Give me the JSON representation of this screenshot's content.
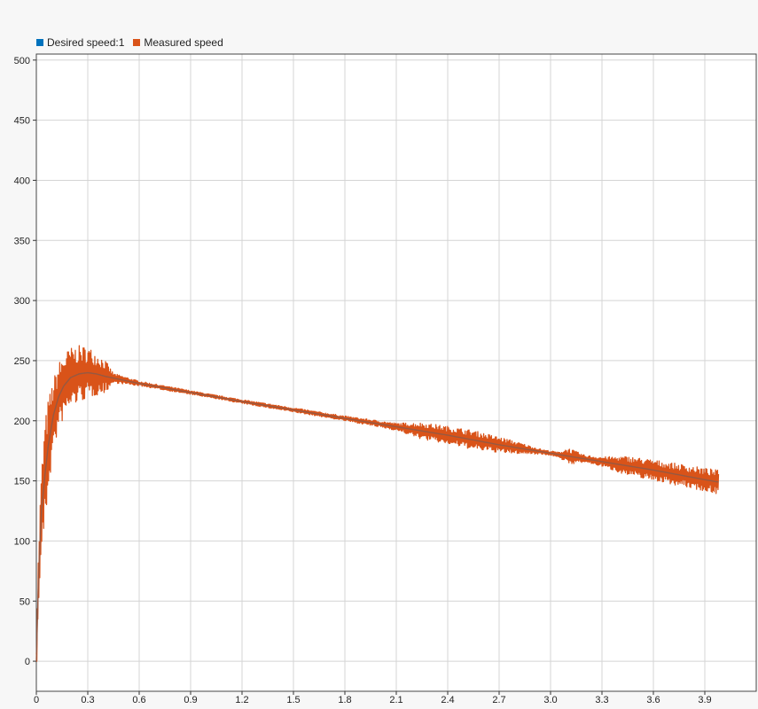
{
  "chart_data": {
    "type": "line",
    "title": "",
    "xlabel": "",
    "ylabel": "",
    "xlim": [
      0,
      4.2
    ],
    "ylim": [
      -25,
      505
    ],
    "xticks": [
      "0",
      "0.3",
      "0.6",
      "0.9",
      "1.2",
      "1.5",
      "1.8",
      "2.1",
      "2.4",
      "2.7",
      "3.0",
      "3.3",
      "3.6",
      "3.9"
    ],
    "yticks": [
      "0",
      "50",
      "100",
      "150",
      "200",
      "250",
      "300",
      "350",
      "400",
      "450",
      "500"
    ],
    "grid": true,
    "legend_position": "top-left",
    "series": [
      {
        "name": "Desired speed:1",
        "color": "#0072bd",
        "x": [
          0,
          0.01,
          0.02,
          0.03,
          0.05,
          0.07,
          0.1,
          0.13,
          0.16,
          0.2,
          0.25,
          0.3,
          0.35,
          0.4,
          0.5,
          0.6,
          0.8,
          1.0,
          1.2,
          1.5,
          1.8,
          2.1,
          2.4,
          2.7,
          3.0,
          3.3,
          3.6,
          3.9,
          3.98
        ],
        "y": [
          0,
          55,
          95,
          125,
          155,
          180,
          205,
          220,
          229,
          236,
          239,
          240,
          239,
          237,
          234,
          231,
          226,
          221,
          216,
          209,
          202,
          195,
          188,
          180,
          173,
          166,
          159,
          151,
          149
        ]
      },
      {
        "name": "Measured speed",
        "color": "#d95319",
        "x": [
          0,
          0.01,
          0.02,
          0.03,
          0.05,
          0.07,
          0.1,
          0.13,
          0.16,
          0.2,
          0.25,
          0.3,
          0.35,
          0.4,
          0.5,
          0.6,
          0.8,
          1.0,
          1.2,
          1.5,
          1.8,
          2.1,
          2.4,
          2.7,
          3.0,
          3.3,
          3.6,
          3.9,
          3.98
        ],
        "y": [
          0,
          55,
          95,
          125,
          155,
          180,
          205,
          220,
          229,
          236,
          239,
          240,
          239,
          237,
          234,
          231,
          226,
          221,
          216,
          209,
          202,
          195,
          188,
          180,
          173,
          166,
          159,
          151,
          149
        ],
        "noise": {
          "x": [
            0,
            0.05,
            0.1,
            0.2,
            0.3,
            0.4,
            0.45,
            0.6,
            1.0,
            1.8,
            2.1,
            2.25,
            2.55,
            2.75,
            2.95,
            3.05,
            3.1,
            3.2,
            3.3,
            3.45,
            3.98
          ],
          "amplitude": [
            20,
            45,
            30,
            25,
            22,
            14,
            4,
            2,
            1.5,
            2,
            3,
            7,
            8,
            6,
            2,
            2,
            7,
            3,
            4,
            8,
            10
          ]
        }
      }
    ]
  }
}
